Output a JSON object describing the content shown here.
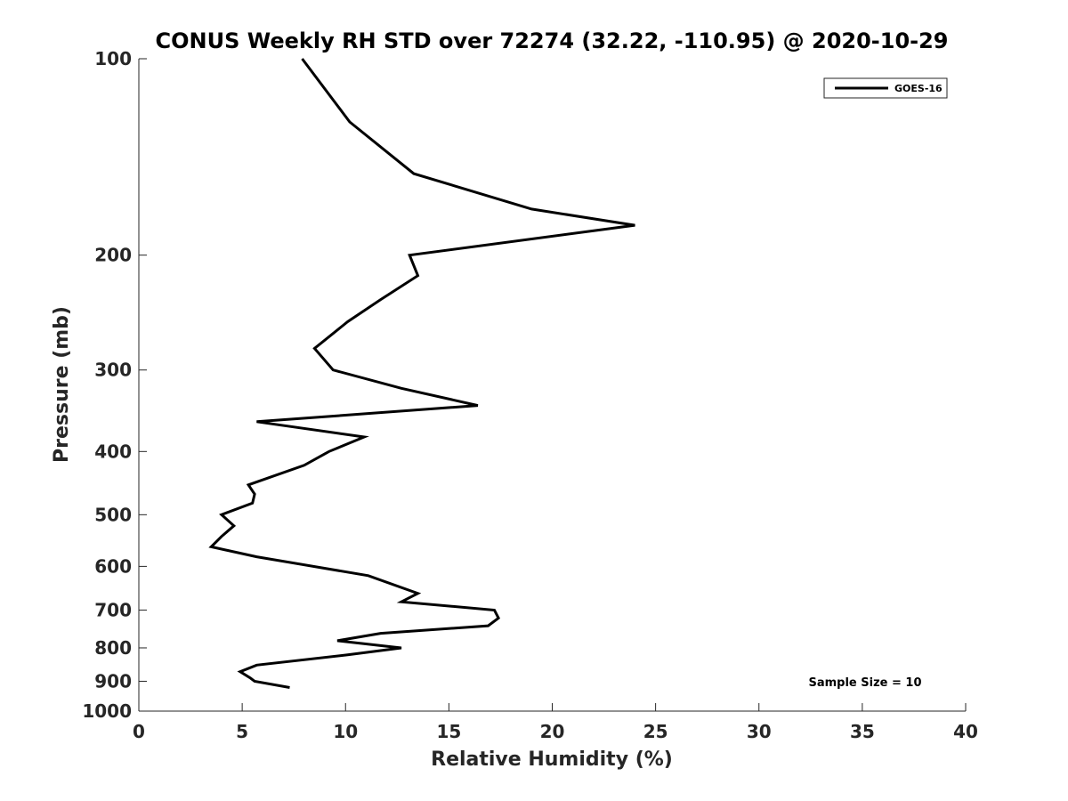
{
  "chart_data": {
    "type": "line",
    "title": "CONUS Weekly RH STD over 72274 (32.22, -110.95) @ 2020-10-29",
    "xlabel": "Relative Humidity (%)",
    "ylabel": "Pressure (mb)",
    "xlim": [
      0,
      40
    ],
    "ylim": [
      100,
      1000
    ],
    "yscale": "log",
    "yaxis_reversed": true,
    "x_ticks": [
      0,
      5,
      10,
      15,
      20,
      25,
      30,
      35,
      40
    ],
    "y_ticks": [
      100,
      200,
      300,
      400,
      500,
      600,
      700,
      800,
      900,
      1000
    ],
    "grid": false,
    "legend_position": "top-right",
    "annotation": "Sample Size = 10",
    "series": [
      {
        "name": "GOES-16",
        "color": "#000000",
        "points": [
          {
            "x": 7.9,
            "y": 100
          },
          {
            "x": 10.2,
            "y": 125
          },
          {
            "x": 13.3,
            "y": 150
          },
          {
            "x": 19.0,
            "y": 170
          },
          {
            "x": 24.0,
            "y": 180
          },
          {
            "x": 13.1,
            "y": 200
          },
          {
            "x": 13.5,
            "y": 215
          },
          {
            "x": 11.7,
            "y": 234
          },
          {
            "x": 10.1,
            "y": 253
          },
          {
            "x": 8.5,
            "y": 278
          },
          {
            "x": 9.4,
            "y": 300
          },
          {
            "x": 12.7,
            "y": 320
          },
          {
            "x": 16.4,
            "y": 340
          },
          {
            "x": 5.7,
            "y": 360
          },
          {
            "x": 10.9,
            "y": 380
          },
          {
            "x": 9.2,
            "y": 400
          },
          {
            "x": 8.0,
            "y": 420
          },
          {
            "x": 5.3,
            "y": 450
          },
          {
            "x": 5.6,
            "y": 465
          },
          {
            "x": 5.5,
            "y": 480
          },
          {
            "x": 4.0,
            "y": 500
          },
          {
            "x": 4.6,
            "y": 520
          },
          {
            "x": 4.0,
            "y": 540
          },
          {
            "x": 3.5,
            "y": 560
          },
          {
            "x": 5.7,
            "y": 580
          },
          {
            "x": 11.1,
            "y": 620
          },
          {
            "x": 13.5,
            "y": 660
          },
          {
            "x": 12.7,
            "y": 680
          },
          {
            "x": 17.2,
            "y": 700
          },
          {
            "x": 17.4,
            "y": 720
          },
          {
            "x": 16.9,
            "y": 740
          },
          {
            "x": 11.7,
            "y": 760
          },
          {
            "x": 9.6,
            "y": 780
          },
          {
            "x": 12.7,
            "y": 800
          },
          {
            "x": 10.1,
            "y": 820
          },
          {
            "x": 5.7,
            "y": 850
          },
          {
            "x": 4.9,
            "y": 870
          },
          {
            "x": 5.4,
            "y": 890
          },
          {
            "x": 5.6,
            "y": 900
          },
          {
            "x": 7.3,
            "y": 920
          }
        ]
      }
    ]
  }
}
